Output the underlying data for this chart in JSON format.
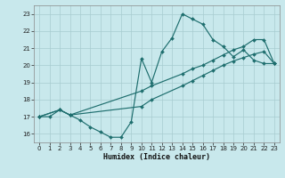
{
  "xlabel": "Humidex (Indice chaleur)",
  "bg_color": "#c8e8ec",
  "grid_color": "#a8ccd0",
  "line_color": "#1e6e6e",
  "xlim": [
    -0.5,
    23.5
  ],
  "ylim": [
    15.5,
    23.5
  ],
  "xticks": [
    0,
    1,
    2,
    3,
    4,
    5,
    6,
    7,
    8,
    9,
    10,
    11,
    12,
    13,
    14,
    15,
    16,
    17,
    18,
    19,
    20,
    21,
    22,
    23
  ],
  "yticks": [
    16,
    17,
    18,
    19,
    20,
    21,
    22,
    23
  ],
  "line1_x": [
    0,
    1,
    2,
    3,
    4,
    5,
    6,
    7,
    8,
    9,
    10,
    11,
    12,
    13,
    14,
    15,
    16,
    17,
    18,
    19,
    20,
    21,
    22,
    23
  ],
  "line1_y": [
    17.0,
    17.0,
    17.4,
    17.1,
    16.8,
    16.4,
    16.1,
    15.8,
    15.8,
    16.7,
    20.4,
    19.0,
    20.8,
    21.6,
    23.0,
    22.7,
    22.4,
    21.5,
    21.1,
    20.5,
    20.9,
    20.3,
    20.1,
    20.1
  ],
  "line2_x": [
    0,
    2,
    3,
    10,
    11,
    14,
    15,
    16,
    17,
    18,
    19,
    20,
    21,
    22,
    23
  ],
  "line2_y": [
    17.0,
    17.4,
    17.1,
    18.5,
    18.8,
    19.5,
    19.8,
    20.0,
    20.3,
    20.6,
    20.9,
    21.1,
    21.5,
    21.5,
    20.1
  ],
  "line3_x": [
    0,
    2,
    3,
    10,
    11,
    14,
    15,
    16,
    17,
    18,
    19,
    20,
    21,
    22,
    23
  ],
  "line3_y": [
    17.0,
    17.4,
    17.1,
    17.6,
    18.0,
    18.8,
    19.1,
    19.4,
    19.7,
    20.0,
    20.25,
    20.45,
    20.65,
    20.8,
    20.1
  ]
}
